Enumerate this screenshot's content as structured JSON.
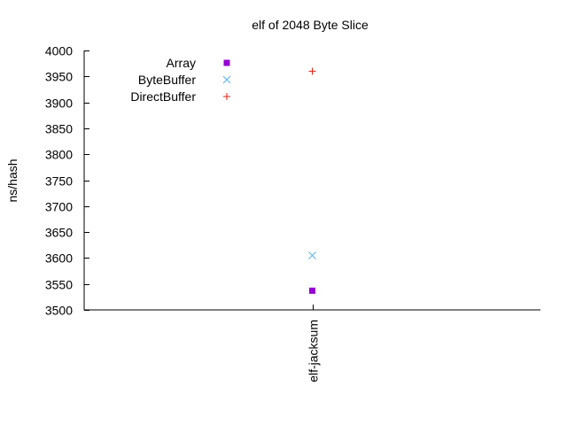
{
  "chart_data": {
    "type": "scatter",
    "title": "elf of 2048 Byte Slice",
    "xlabel": "",
    "ylabel": "ns/hash",
    "categories": [
      "elf-jacksum"
    ],
    "ylim": [
      3500,
      4000
    ],
    "yticks": [
      3500,
      3550,
      3600,
      3650,
      3700,
      3750,
      3800,
      3850,
      3900,
      3950,
      4000
    ],
    "grid": false,
    "legend_position": "top-left",
    "series": [
      {
        "name": "Array",
        "marker": "filled-square",
        "color": "#9400d3",
        "values": [
          3537
        ]
      },
      {
        "name": "ByteBuffer",
        "marker": "x",
        "color": "#56b4e9",
        "values": [
          3605
        ]
      },
      {
        "name": "DirectBuffer",
        "marker": "plus",
        "color": "#e51e10",
        "values": [
          3960
        ]
      }
    ]
  }
}
